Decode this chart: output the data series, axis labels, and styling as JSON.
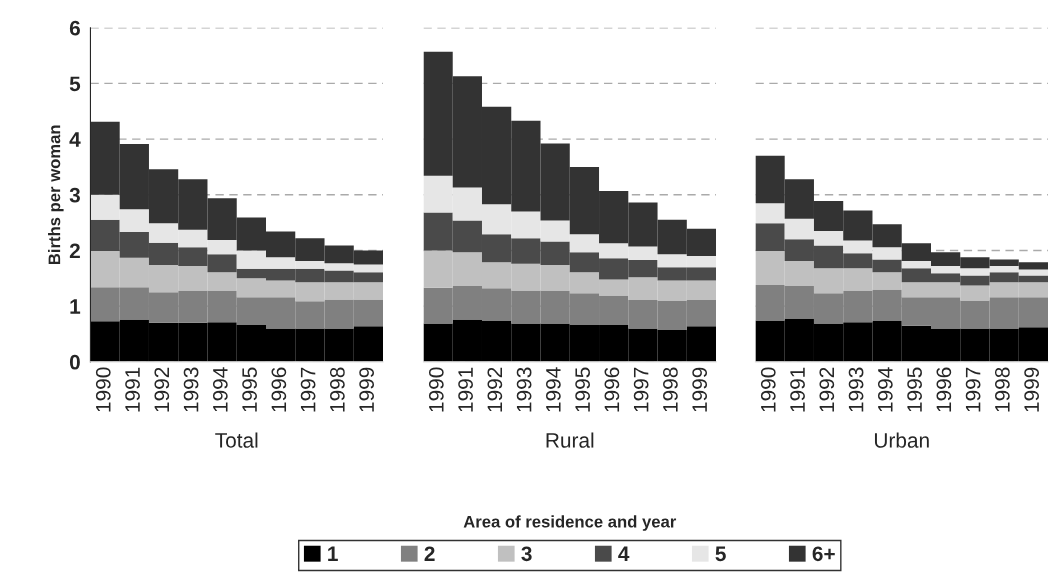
{
  "chart_data": [
    {
      "type": "bar",
      "stacked": true,
      "xlabel": "Total",
      "ylabel": "Births per woman",
      "categories": [
        "1990",
        "1991",
        "1992",
        "1993",
        "1994",
        "1995",
        "1996",
        "1997",
        "1998",
        "1999"
      ],
      "ylim": [
        0,
        6
      ],
      "yticks": [
        0,
        1,
        2,
        3,
        4,
        5,
        6
      ],
      "grid": "y",
      "legend": false,
      "series": [
        {
          "color": "#000000",
          "values": [
            0.73,
            0.76,
            0.7,
            0.7,
            0.71,
            0.66,
            0.6,
            0.6,
            0.6,
            0.64
          ]
        },
        {
          "color": "#808080",
          "values": [
            0.61,
            0.58,
            0.55,
            0.58,
            0.57,
            0.5,
            0.56,
            0.49,
            0.52,
            0.48
          ]
        },
        {
          "color": "#c0c0c0",
          "values": [
            0.65,
            0.53,
            0.49,
            0.44,
            0.33,
            0.34,
            0.3,
            0.34,
            0.31,
            0.31
          ]
        },
        {
          "color": "#4a4a4a",
          "values": [
            0.56,
            0.46,
            0.4,
            0.34,
            0.32,
            0.17,
            0.21,
            0.24,
            0.21,
            0.18
          ]
        },
        {
          "color": "#e6e6e6",
          "values": [
            0.45,
            0.41,
            0.35,
            0.31,
            0.26,
            0.33,
            0.21,
            0.14,
            0.13,
            0.14
          ]
        },
        {
          "color": "#333333",
          "values": [
            1.31,
            1.17,
            0.97,
            0.91,
            0.75,
            0.59,
            0.46,
            0.41,
            0.32,
            0.25
          ]
        }
      ]
    },
    {
      "type": "bar",
      "stacked": true,
      "xlabel": "Rural",
      "categories": [
        "1990",
        "1991",
        "1992",
        "1993",
        "1994",
        "1995",
        "1996",
        "1997",
        "1998",
        "1999"
      ],
      "ylim": [
        0,
        6
      ],
      "yticks": [
        0,
        1,
        2,
        3,
        4,
        5,
        6
      ],
      "grid": "y",
      "tick_labels": "x",
      "legend": "bottom",
      "annotations": [
        "Area of residence and year"
      ],
      "series": [
        {
          "name": "1",
          "color": "#000000",
          "values": [
            0.69,
            0.76,
            0.74,
            0.69,
            0.69,
            0.66,
            0.66,
            0.6,
            0.57,
            0.64
          ]
        },
        {
          "name": "2",
          "color": "#808080",
          "values": [
            0.64,
            0.6,
            0.58,
            0.59,
            0.59,
            0.57,
            0.53,
            0.51,
            0.53,
            0.47
          ]
        },
        {
          "name": "3",
          "color": "#c0c0c0",
          "values": [
            0.67,
            0.61,
            0.47,
            0.48,
            0.46,
            0.38,
            0.29,
            0.41,
            0.36,
            0.35
          ]
        },
        {
          "name": "4",
          "color": "#4a4a4a",
          "values": [
            0.68,
            0.57,
            0.5,
            0.46,
            0.42,
            0.36,
            0.38,
            0.31,
            0.24,
            0.24
          ]
        },
        {
          "name": "5",
          "color": "#e6e6e6",
          "values": [
            0.66,
            0.59,
            0.54,
            0.48,
            0.38,
            0.32,
            0.27,
            0.24,
            0.23,
            0.2
          ]
        },
        {
          "name": "6+",
          "color": "#333333",
          "values": [
            2.23,
            2.0,
            1.75,
            1.63,
            1.38,
            1.21,
            0.94,
            0.79,
            0.62,
            0.49
          ]
        }
      ]
    },
    {
      "type": "bar",
      "stacked": true,
      "xlabel": "Urban",
      "categories": [
        "1990",
        "1991",
        "1992",
        "1993",
        "1994",
        "1995",
        "1996",
        "1997",
        "1998",
        "1999"
      ],
      "ylim": [
        0,
        6
      ],
      "yticks": [
        0,
        1,
        2,
        3,
        4,
        5,
        6
      ],
      "grid": "y",
      "tick_labels": "x",
      "legend": false,
      "series": [
        {
          "color": "#000000",
          "values": [
            0.74,
            0.78,
            0.69,
            0.71,
            0.74,
            0.65,
            0.6,
            0.6,
            0.6,
            0.62
          ]
        },
        {
          "color": "#808080",
          "values": [
            0.64,
            0.58,
            0.54,
            0.57,
            0.56,
            0.51,
            0.56,
            0.5,
            0.56,
            0.54
          ]
        },
        {
          "color": "#c0c0c0",
          "values": [
            0.61,
            0.45,
            0.45,
            0.4,
            0.31,
            0.27,
            0.27,
            0.27,
            0.27,
            0.27
          ]
        },
        {
          "color": "#4a4a4a",
          "values": [
            0.5,
            0.39,
            0.41,
            0.27,
            0.23,
            0.25,
            0.16,
            0.18,
            0.18,
            0.12
          ]
        },
        {
          "color": "#e6e6e6",
          "values": [
            0.36,
            0.37,
            0.26,
            0.23,
            0.22,
            0.13,
            0.13,
            0.13,
            0.11,
            0.11
          ]
        },
        {
          "color": "#333333",
          "values": [
            0.85,
            0.71,
            0.54,
            0.54,
            0.41,
            0.32,
            0.25,
            0.2,
            0.12,
            0.13
          ]
        }
      ]
    }
  ]
}
